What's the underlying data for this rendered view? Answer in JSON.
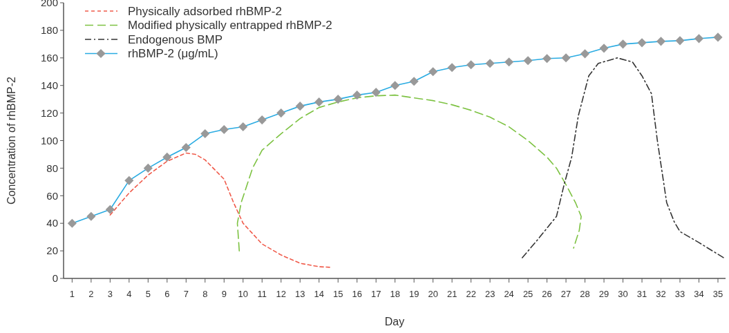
{
  "chart_data": {
    "type": "line",
    "xlabel": "Day",
    "ylabel": "Concentration of rhBMP-2",
    "xlim": [
      0.55,
      35.4
    ],
    "xticks": [
      1,
      2,
      3,
      4,
      5,
      6,
      7,
      8,
      9,
      10,
      11,
      12,
      13,
      14,
      15,
      16,
      17,
      18,
      19,
      20,
      21,
      22,
      23,
      24,
      25,
      26,
      27,
      28,
      29,
      30,
      31,
      32,
      33,
      34,
      35
    ],
    "ylim": [
      0,
      200
    ],
    "yticks": [
      0,
      20,
      40,
      60,
      80,
      100,
      120,
      140,
      160,
      180,
      200
    ],
    "grid": false,
    "legend": "top left",
    "series": [
      {
        "name": "Physically adsorbed rhBMP-2",
        "color": "#f05a4a",
        "line_style": "dashed",
        "marker": "none",
        "x": [
          3,
          4,
          5,
          6,
          7,
          7.5,
          8,
          9,
          9.5,
          10,
          11,
          12,
          13,
          14,
          14.7
        ],
        "values": [
          46,
          62,
          75,
          85,
          91,
          90,
          86,
          72,
          55,
          40,
          25,
          17,
          11,
          8.5,
          8
        ]
      },
      {
        "name": "Modified physically entrapped rhBMP-2",
        "color": "#7dc242",
        "line_style": "dashed",
        "marker": "none",
        "x": [
          9.8,
          9.7,
          9.9,
          10.5,
          11,
          12,
          13,
          14,
          15,
          16,
          17,
          18,
          19,
          20,
          21,
          22,
          23,
          24,
          25,
          26,
          26.5,
          27,
          27.5,
          27.8,
          27.7,
          27.4
        ],
        "values": [
          20,
          40,
          55,
          80,
          93,
          105,
          116,
          124,
          128,
          131,
          132.5,
          133,
          131,
          129,
          126,
          122,
          117,
          110,
          100,
          88,
          80,
          68,
          55,
          45,
          35,
          22
        ]
      },
      {
        "name": "Endogenous BMP",
        "color": "#333333",
        "line_style": "dashed",
        "marker": "none",
        "x": [
          24.7,
          25.5,
          26.5,
          26.9,
          27.3,
          27.65,
          28.2,
          28.7,
          29.7,
          30.5,
          31,
          31.5,
          31.8,
          32.3,
          32.7,
          33,
          34,
          35.3
        ],
        "values": [
          15,
          28,
          45,
          68,
          88,
          118,
          147,
          156,
          160,
          157,
          147,
          134,
          101,
          55,
          41,
          34,
          26,
          15
        ]
      },
      {
        "name": "rhBMP-2 (μg/mL)",
        "color": "#29abe2",
        "line_style": "solid",
        "marker": "diamond",
        "x": [
          1,
          2,
          3,
          4,
          5,
          6,
          7,
          8,
          9,
          10,
          11,
          12,
          13,
          14,
          15,
          16,
          17,
          18,
          19,
          20,
          21,
          22,
          23,
          24,
          25,
          26,
          27,
          28,
          29,
          30,
          31,
          32,
          33,
          34,
          35
        ],
        "values": [
          40,
          45,
          50,
          71,
          80,
          88,
          95,
          105,
          108,
          110,
          115,
          120,
          125,
          128,
          130,
          133,
          135,
          140,
          143,
          150,
          153,
          155,
          156,
          157,
          158,
          159.5,
          160,
          163,
          167,
          170,
          171,
          172,
          172.5,
          174,
          175
        ]
      }
    ]
  }
}
